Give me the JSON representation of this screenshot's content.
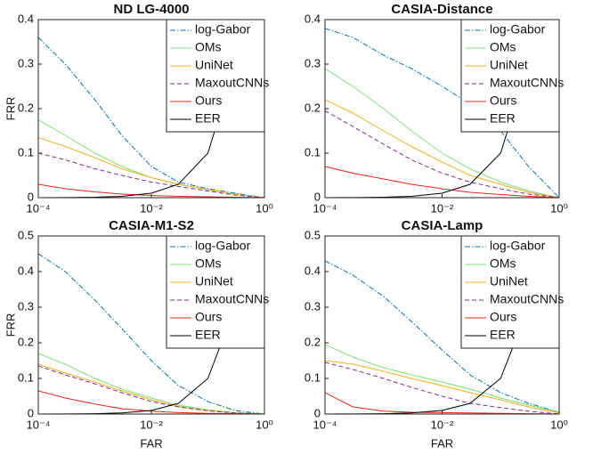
{
  "chart_data": [
    {
      "type": "line",
      "title": "ND LG-4000",
      "ylabel": "FRR",
      "xscale": "log",
      "legend": "upper right",
      "x": [
        0.0001,
        0.0003,
        0.001,
        0.003,
        0.01,
        0.03,
        0.1,
        0.3,
        1
      ],
      "xlim": [
        0.0001,
        1
      ],
      "xticks": [
        {
          "value": 0.0001,
          "label": "10⁻⁴"
        },
        {
          "value": 0.01,
          "label": "10⁻²"
        },
        {
          "value": 1,
          "label": "10⁰"
        }
      ],
      "ylim": [
        0,
        0.4
      ],
      "yticks": [
        0,
        0.1,
        0.2,
        0.3,
        0.4
      ],
      "series": [
        {
          "name": "log-Gabor",
          "color": "#0072bd",
          "dash": "dashdot",
          "values": [
            0.36,
            0.3,
            0.22,
            0.14,
            0.07,
            0.035,
            0.02,
            0.01,
            0
          ]
        },
        {
          "name": "OMs",
          "color": "#7ee07e",
          "dash": "solid",
          "values": [
            0.175,
            0.14,
            0.1,
            0.07,
            0.045,
            0.03,
            0.018,
            0.008,
            0
          ]
        },
        {
          "name": "UniNet",
          "color": "#edb120",
          "dash": "solid",
          "values": [
            0.135,
            0.115,
            0.09,
            0.065,
            0.045,
            0.03,
            0.018,
            0.008,
            0
          ]
        },
        {
          "name": "MaxoutCNNs",
          "color": "#7e2f8e",
          "dash": "dashed",
          "values": [
            0.1,
            0.085,
            0.065,
            0.05,
            0.035,
            0.025,
            0.015,
            0.006,
            0
          ]
        },
        {
          "name": "Ours",
          "color": "#e8241b",
          "dash": "solid",
          "values": [
            0.03,
            0.02,
            0.013,
            0.008,
            0.005,
            0.003,
            0.002,
            0.001,
            0
          ]
        },
        {
          "name": "EER",
          "color": "#000000",
          "dash": "solid",
          "values": [
            0.0001,
            0.0003,
            0.001,
            0.003,
            0.01,
            0.03,
            0.1,
            0.3,
            null
          ]
        }
      ]
    },
    {
      "type": "line",
      "title": "CASIA-Distance",
      "xscale": "log",
      "legend": "upper right",
      "x": [
        0.0001,
        0.0003,
        0.001,
        0.003,
        0.01,
        0.03,
        0.1,
        0.3,
        1
      ],
      "xlim": [
        0.0001,
        1
      ],
      "xticks": [
        {
          "value": 0.0001,
          "label": "10⁻⁴"
        },
        {
          "value": 0.01,
          "label": "10⁻²"
        },
        {
          "value": 1,
          "label": "10⁰"
        }
      ],
      "ylim": [
        0,
        0.4
      ],
      "yticks": [
        0,
        0.1,
        0.2,
        0.3,
        0.4
      ],
      "series": [
        {
          "name": "log-Gabor",
          "color": "#0072bd",
          "dash": "dashdot",
          "values": [
            0.38,
            0.36,
            0.32,
            0.29,
            0.25,
            0.21,
            0.15,
            0.07,
            0
          ]
        },
        {
          "name": "OMs",
          "color": "#7ee07e",
          "dash": "solid",
          "values": [
            0.29,
            0.25,
            0.2,
            0.15,
            0.1,
            0.065,
            0.035,
            0.015,
            0
          ]
        },
        {
          "name": "UniNet",
          "color": "#edb120",
          "dash": "solid",
          "values": [
            0.22,
            0.19,
            0.15,
            0.115,
            0.08,
            0.05,
            0.03,
            0.012,
            0
          ]
        },
        {
          "name": "MaxoutCNNs",
          "color": "#7e2f8e",
          "dash": "dashed",
          "values": [
            0.195,
            0.16,
            0.12,
            0.085,
            0.055,
            0.035,
            0.02,
            0.008,
            0
          ]
        },
        {
          "name": "Ours",
          "color": "#e8241b",
          "dash": "solid",
          "values": [
            0.07,
            0.055,
            0.042,
            0.03,
            0.02,
            0.012,
            0.007,
            0.003,
            0
          ]
        },
        {
          "name": "EER",
          "color": "#000000",
          "dash": "solid",
          "values": [
            0.0001,
            0.0003,
            0.001,
            0.003,
            0.01,
            0.03,
            0.1,
            0.3,
            null
          ]
        }
      ]
    },
    {
      "type": "line",
      "title": "CASIA-M1-S2",
      "xlabel": "FAR",
      "ylabel": "FRR",
      "xscale": "log",
      "legend": "upper right",
      "x": [
        0.0001,
        0.0003,
        0.001,
        0.003,
        0.01,
        0.03,
        0.1,
        0.3,
        1
      ],
      "xlim": [
        0.0001,
        1
      ],
      "xticks": [
        {
          "value": 0.0001,
          "label": "10⁻⁴"
        },
        {
          "value": 0.01,
          "label": "10⁻²"
        },
        {
          "value": 1,
          "label": "10⁰"
        }
      ],
      "ylim": [
        0,
        0.5
      ],
      "yticks": [
        0,
        0.1,
        0.2,
        0.3,
        0.4,
        0.5
      ],
      "series": [
        {
          "name": "log-Gabor",
          "color": "#0072bd",
          "dash": "dashdot",
          "values": [
            0.45,
            0.4,
            0.32,
            0.24,
            0.15,
            0.08,
            0.035,
            0.01,
            0
          ]
        },
        {
          "name": "OMs",
          "color": "#7ee07e",
          "dash": "solid",
          "values": [
            0.17,
            0.14,
            0.1,
            0.07,
            0.045,
            0.025,
            0.012,
            0.004,
            0
          ]
        },
        {
          "name": "UniNet",
          "color": "#edb120",
          "dash": "solid",
          "values": [
            0.14,
            0.115,
            0.09,
            0.065,
            0.04,
            0.022,
            0.01,
            0.003,
            0
          ]
        },
        {
          "name": "MaxoutCNNs",
          "color": "#7e2f8e",
          "dash": "dashed",
          "values": [
            0.135,
            0.11,
            0.085,
            0.06,
            0.035,
            0.02,
            0.009,
            0.003,
            0
          ]
        },
        {
          "name": "Ours",
          "color": "#e8241b",
          "dash": "solid",
          "values": [
            0.065,
            0.045,
            0.028,
            0.015,
            0.008,
            0.004,
            0.002,
            0.001,
            0
          ]
        },
        {
          "name": "EER",
          "color": "#000000",
          "dash": "solid",
          "values": [
            0.0001,
            0.0003,
            0.001,
            0.003,
            0.01,
            0.03,
            0.1,
            0.3,
            null
          ]
        }
      ]
    },
    {
      "type": "line",
      "title": "CASIA-Lamp",
      "xlabel": "FAR",
      "xscale": "log",
      "legend": "upper right",
      "x": [
        0.0001,
        0.0003,
        0.001,
        0.003,
        0.01,
        0.03,
        0.1,
        0.3,
        1
      ],
      "xlim": [
        0.0001,
        1
      ],
      "xticks": [
        {
          "value": 0.0001,
          "label": "10⁻⁴"
        },
        {
          "value": 0.01,
          "label": "10⁻²"
        },
        {
          "value": 1,
          "label": "10⁰"
        }
      ],
      "ylim": [
        0,
        0.5
      ],
      "yticks": [
        0,
        0.1,
        0.2,
        0.3,
        0.4,
        0.5
      ],
      "series": [
        {
          "name": "log-Gabor",
          "color": "#0072bd",
          "dash": "dashdot",
          "values": [
            0.43,
            0.39,
            0.33,
            0.26,
            0.18,
            0.11,
            0.06,
            0.03,
            0.005
          ]
        },
        {
          "name": "OMs",
          "color": "#7ee07e",
          "dash": "solid",
          "values": [
            0.195,
            0.16,
            0.13,
            0.11,
            0.09,
            0.07,
            0.045,
            0.025,
            0.005
          ]
        },
        {
          "name": "UniNet",
          "color": "#edb120",
          "dash": "solid",
          "values": [
            0.15,
            0.14,
            0.12,
            0.1,
            0.08,
            0.06,
            0.04,
            0.02,
            0.003
          ]
        },
        {
          "name": "MaxoutCNNs",
          "color": "#7e2f8e",
          "dash": "dashed",
          "values": [
            0.145,
            0.125,
            0.1,
            0.075,
            0.05,
            0.03,
            0.018,
            0.008,
            0
          ]
        },
        {
          "name": "Ours",
          "color": "#e8241b",
          "dash": "solid",
          "values": [
            0.06,
            0.02,
            0.008,
            0.005,
            0.004,
            0.003,
            0.002,
            0.001,
            0
          ]
        },
        {
          "name": "EER",
          "color": "#000000",
          "dash": "solid",
          "values": [
            0.0001,
            0.0003,
            0.001,
            0.003,
            0.01,
            0.03,
            0.1,
            0.3,
            null
          ]
        }
      ]
    }
  ]
}
